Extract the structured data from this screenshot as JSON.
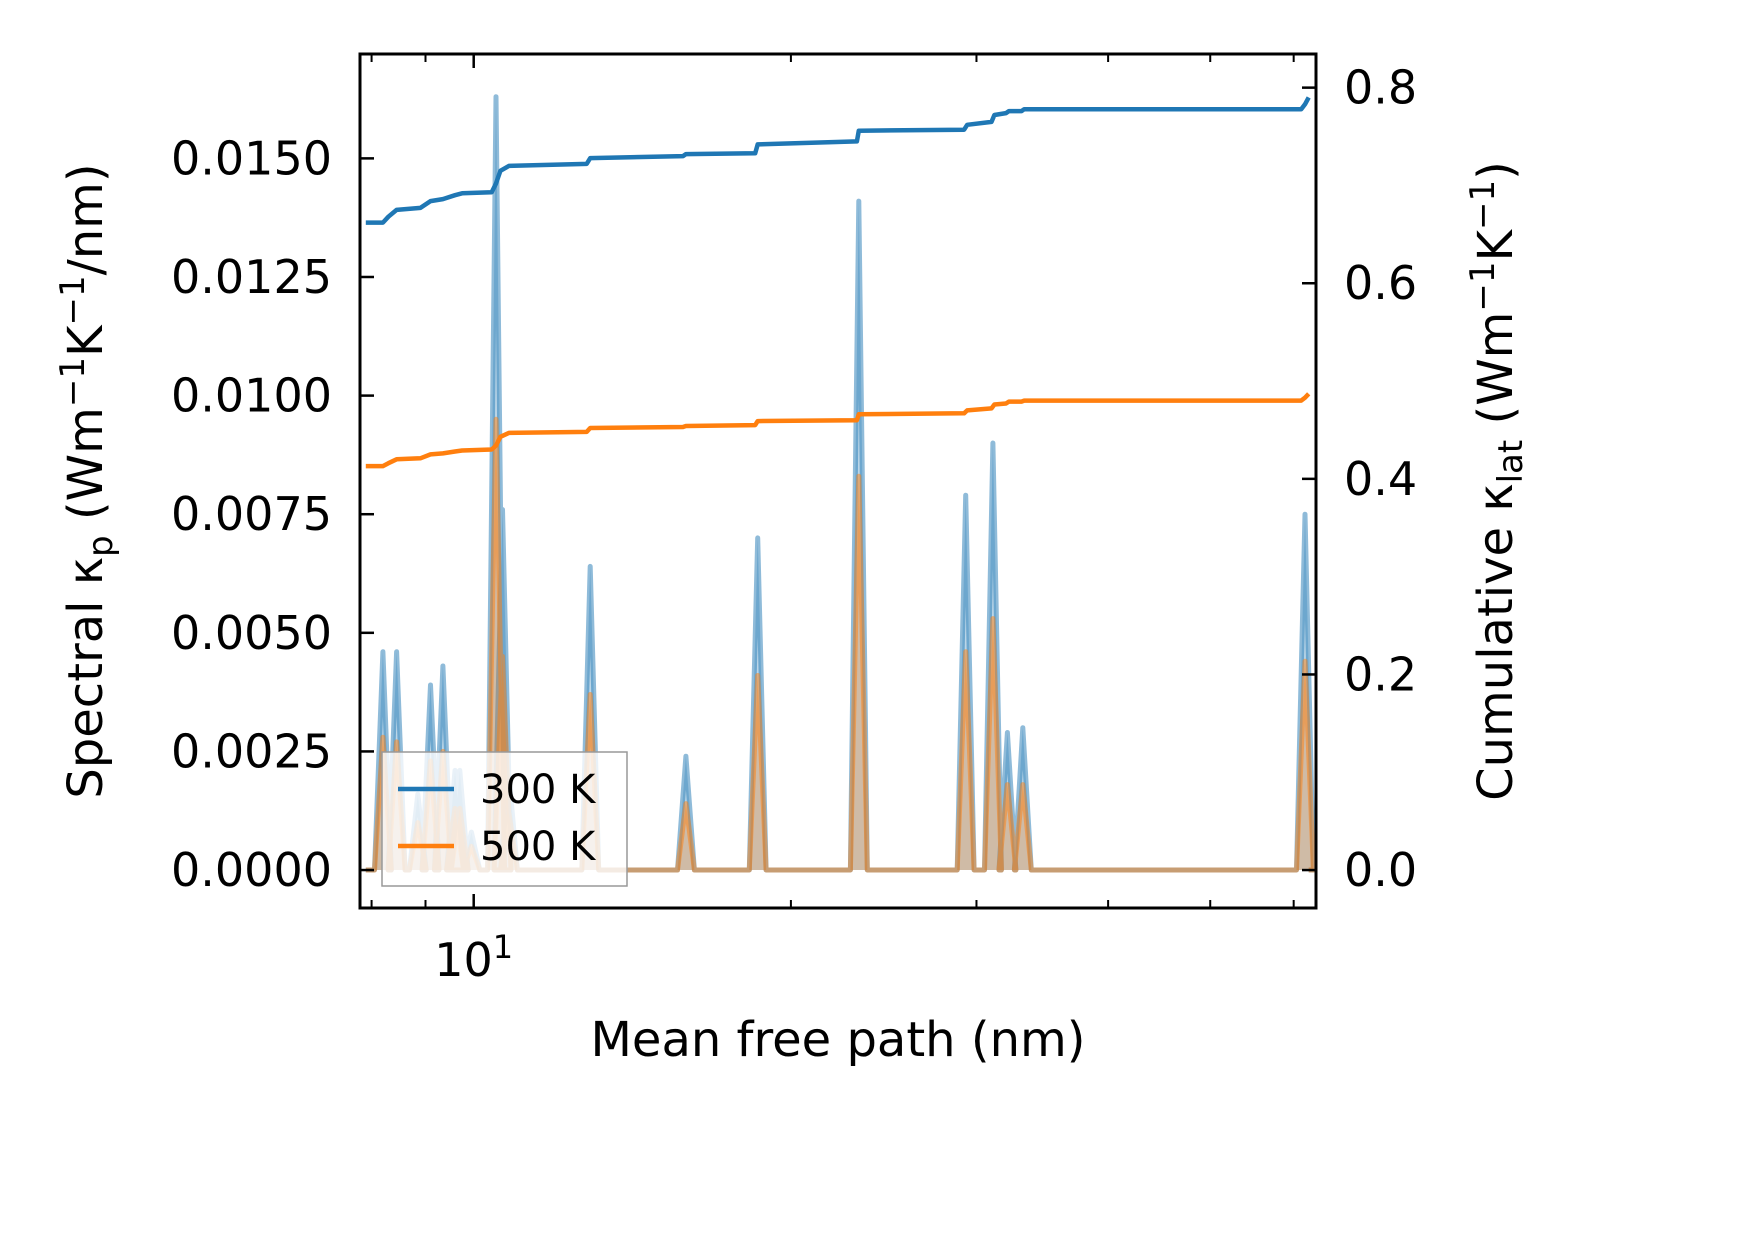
{
  "chart_data": {
    "type": "line",
    "title": "",
    "xlabel": "Mean free path (nm)",
    "ylabel_left": {
      "main": "Spectral κ",
      "sub": "p",
      "unit_open": " (Wm",
      "exp1": "−1",
      "mid": "K",
      "exp2": "−1",
      "unit_close": "/nm)"
    },
    "ylabel_right": {
      "main": "Cumulative κ",
      "sub": "lat",
      "unit_open": " (Wm",
      "exp1": "−1",
      "mid": "K",
      "exp2": "−1",
      "unit_close": ")"
    },
    "xscale": "log",
    "xlim": [
      7.8,
      63
    ],
    "ylim_left": [
      -0.0008,
      0.0172
    ],
    "ylim_right": [
      -0.0388,
      0.8344
    ],
    "x_tick_labels": [
      {
        "value": 10,
        "base": "10",
        "exp": "1"
      }
    ],
    "x_minor_ticks": [
      8,
      9,
      20,
      30,
      40,
      50,
      60
    ],
    "y_left_ticks": [
      {
        "value": 0.0,
        "label": "0.0000"
      },
      {
        "value": 0.0025,
        "label": "0.0025"
      },
      {
        "value": 0.005,
        "label": "0.0050"
      },
      {
        "value": 0.0075,
        "label": "0.0075"
      },
      {
        "value": 0.01,
        "label": "0.0100"
      },
      {
        "value": 0.0125,
        "label": "0.0125"
      },
      {
        "value": 0.015,
        "label": "0.0150"
      }
    ],
    "y_right_ticks": [
      {
        "value": 0.0,
        "label": "0.0"
      },
      {
        "value": 0.2,
        "label": "0.2"
      },
      {
        "value": 0.4,
        "label": "0.4"
      },
      {
        "value": 0.6,
        "label": "0.6"
      },
      {
        "value": 0.8,
        "label": "0.8"
      }
    ],
    "legend": {
      "position": "lower-left",
      "entries": [
        {
          "name": "300 K",
          "color": "#1f77b4"
        },
        {
          "name": "500 K",
          "color": "#ff7f0e"
        }
      ]
    },
    "peak_width_log10": 0.008,
    "spectral_series": [
      {
        "name": "300 K",
        "color": "#1f77b4",
        "peaks": [
          {
            "x": 8.2,
            "y": 0.0046
          },
          {
            "x": 8.45,
            "y": 0.0046
          },
          {
            "x": 8.85,
            "y": 0.0016
          },
          {
            "x": 9.1,
            "y": 0.0039
          },
          {
            "x": 9.35,
            "y": 0.0043
          },
          {
            "x": 9.6,
            "y": 0.0021
          },
          {
            "x": 9.7,
            "y": 0.0021
          },
          {
            "x": 9.95,
            "y": 0.0008
          },
          {
            "x": 10.5,
            "y": 0.0163
          },
          {
            "x": 10.65,
            "y": 0.0076
          },
          {
            "x": 10.8,
            "y": 0.002
          },
          {
            "x": 12.9,
            "y": 0.0064
          },
          {
            "x": 15.9,
            "y": 0.0024
          },
          {
            "x": 18.6,
            "y": 0.007
          },
          {
            "x": 23.2,
            "y": 0.0141
          },
          {
            "x": 29.3,
            "y": 0.0079
          },
          {
            "x": 31.1,
            "y": 0.009
          },
          {
            "x": 32.1,
            "y": 0.0029
          },
          {
            "x": 33.2,
            "y": 0.003
          },
          {
            "x": 61.5,
            "y": 0.0075
          }
        ]
      },
      {
        "name": "500 K",
        "color": "#ff7f0e",
        "peaks": [
          {
            "x": 8.2,
            "y": 0.0028
          },
          {
            "x": 8.45,
            "y": 0.0027
          },
          {
            "x": 8.85,
            "y": 0.001
          },
          {
            "x": 9.1,
            "y": 0.0023
          },
          {
            "x": 9.35,
            "y": 0.0025
          },
          {
            "x": 9.6,
            "y": 0.0013
          },
          {
            "x": 9.7,
            "y": 0.0013
          },
          {
            "x": 9.95,
            "y": 0.0005
          },
          {
            "x": 10.5,
            "y": 0.0095
          },
          {
            "x": 10.65,
            "y": 0.0045
          },
          {
            "x": 10.8,
            "y": 0.0012
          },
          {
            "x": 12.9,
            "y": 0.0037
          },
          {
            "x": 15.9,
            "y": 0.0014
          },
          {
            "x": 18.6,
            "y": 0.0041
          },
          {
            "x": 23.2,
            "y": 0.0083
          },
          {
            "x": 29.3,
            "y": 0.0046
          },
          {
            "x": 31.1,
            "y": 0.0053
          },
          {
            "x": 32.1,
            "y": 0.0018
          },
          {
            "x": 33.2,
            "y": 0.0018
          },
          {
            "x": 61.5,
            "y": 0.0044
          }
        ]
      }
    ],
    "cumulative_series": [
      {
        "name": "300 K",
        "color": "#1f77b4",
        "x": [
          7.9,
          8.2,
          8.3,
          8.45,
          8.9,
          9.1,
          9.35,
          9.6,
          9.75,
          10.4,
          10.5,
          10.6,
          10.8,
          12.8,
          12.9,
          15.8,
          15.9,
          18.5,
          18.6,
          23.1,
          23.2,
          29.2,
          29.4,
          31.0,
          31.2,
          32.0,
          32.2,
          33.1,
          33.3,
          61.0,
          61.5,
          62.0
        ],
        "y": [
          0.662,
          0.662,
          0.668,
          0.675,
          0.677,
          0.684,
          0.686,
          0.69,
          0.692,
          0.693,
          0.702,
          0.715,
          0.72,
          0.722,
          0.728,
          0.73,
          0.732,
          0.733,
          0.742,
          0.745,
          0.756,
          0.757,
          0.762,
          0.765,
          0.772,
          0.774,
          0.776,
          0.776,
          0.778,
          0.778,
          0.783,
          0.79
        ]
      },
      {
        "name": "500 K",
        "color": "#ff7f0e",
        "x": [
          7.9,
          8.2,
          8.3,
          8.45,
          8.9,
          9.1,
          9.35,
          9.6,
          9.75,
          10.4,
          10.5,
          10.6,
          10.8,
          12.8,
          12.9,
          15.8,
          15.9,
          18.5,
          18.6,
          23.1,
          23.2,
          29.2,
          29.4,
          31.0,
          31.2,
          32.0,
          32.2,
          33.1,
          33.3,
          61.0,
          61.5,
          62.0
        ],
        "y": [
          0.413,
          0.413,
          0.416,
          0.42,
          0.421,
          0.425,
          0.426,
          0.428,
          0.429,
          0.43,
          0.434,
          0.443,
          0.447,
          0.448,
          0.452,
          0.453,
          0.454,
          0.455,
          0.459,
          0.46,
          0.466,
          0.467,
          0.47,
          0.472,
          0.476,
          0.477,
          0.479,
          0.479,
          0.48,
          0.48,
          0.483,
          0.487
        ]
      }
    ]
  }
}
